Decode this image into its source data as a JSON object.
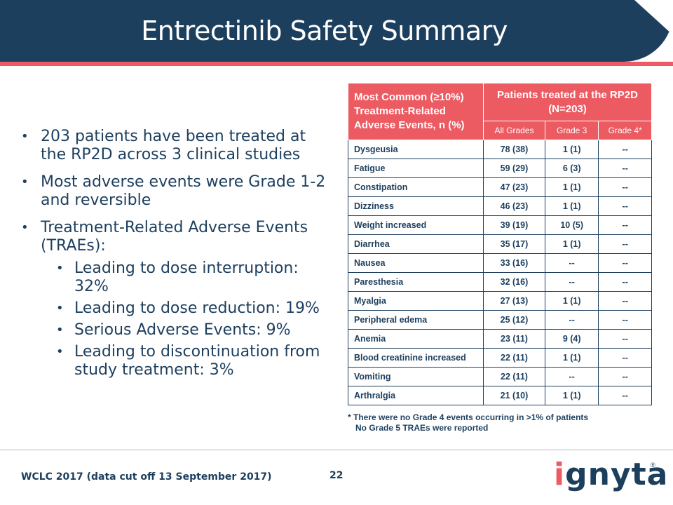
{
  "header": {
    "title": "Entrectinib Safety Summary"
  },
  "bullets": [
    "203 patients have been treated at the RP2D across 3 clinical studies",
    "Most adverse events were Grade 1-2 and reversible",
    "Treatment-Related Adverse Events (TRAEs):"
  ],
  "sub_bullets": [
    "Leading to dose interruption: 32%",
    "Leading to dose reduction: 19%",
    "Serious Adverse Events: 9%",
    "Leading to discontinuation from study treatment: 3%"
  ],
  "table": {
    "header_main": "Most Common (≥10%) Treatment-Related Adverse Events, n (%)",
    "header_group": "Patients treated at the RP2D (N=203)",
    "columns": [
      "All Grades",
      "Grade 3",
      "Grade 4*"
    ],
    "rows": [
      [
        "Dysgeusia",
        "78 (38)",
        "1 (1)",
        "--"
      ],
      [
        "Fatigue",
        "59 (29)",
        "6 (3)",
        "--"
      ],
      [
        "Constipation",
        "47 (23)",
        "1 (1)",
        "--"
      ],
      [
        "Dizziness",
        "46 (23)",
        "1 (1)",
        "--"
      ],
      [
        "Weight increased",
        "39 (19)",
        "10 (5)",
        "--"
      ],
      [
        "Diarrhea",
        "35 (17)",
        "1 (1)",
        "--"
      ],
      [
        "Nausea",
        "33 (16)",
        "--",
        "--"
      ],
      [
        "Paresthesia",
        "32 (16)",
        "--",
        "--"
      ],
      [
        "Myalgia",
        "27 (13)",
        "1 (1)",
        "--"
      ],
      [
        "Peripheral edema",
        "25 (12)",
        "--",
        "--"
      ],
      [
        "Anemia",
        "23 (11)",
        "9 (4)",
        "--"
      ],
      [
        "Blood creatinine increased",
        "22 (11)",
        "1 (1)",
        "--"
      ],
      [
        "Vomiting",
        "22 (11)",
        "--",
        "--"
      ],
      [
        "Arthralgia",
        "21 (10)",
        "1 (1)",
        "--"
      ]
    ]
  },
  "footnote": {
    "line1": "* There were no Grade 4 events occurring in >1% of patients",
    "line2": "No Grade 5 TRAEs were reported"
  },
  "footer": {
    "source": "WCLC 2017 (data cut off 13 September 2017)",
    "page": "22",
    "logo_text": "ignyta",
    "registered": "®"
  },
  "colors": {
    "navy": "#1d3f5e",
    "accent": "#ec5a62"
  }
}
